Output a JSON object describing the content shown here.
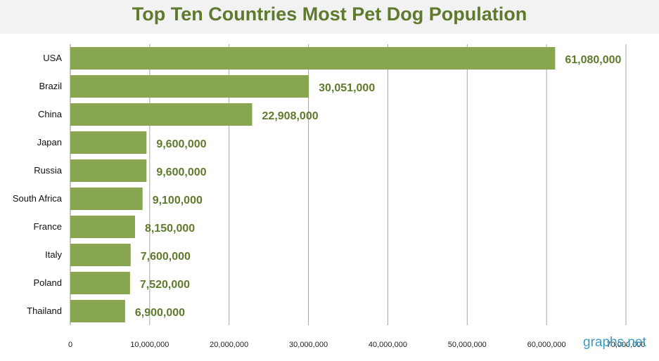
{
  "chart_data": {
    "type": "bar",
    "orientation": "horizontal",
    "title": "Top Ten Countries Most Pet Dog Population",
    "categories": [
      "USA",
      "Brazil",
      "China",
      "Japan",
      "Russia",
      "South Africa",
      "France",
      "Italy",
      "Poland",
      "Thailand"
    ],
    "values": [
      61080000,
      30051000,
      22908000,
      9600000,
      9600000,
      9100000,
      8150000,
      7600000,
      7520000,
      6900000
    ],
    "data_labels": [
      "61,080,000",
      "30,051,000",
      "22,908,000",
      "9,600,000",
      "9,600,000",
      "9,100,000",
      "8,150,000",
      "7,600,000",
      "7,520,000",
      "6,900,000"
    ],
    "xlim": [
      0,
      70000000
    ],
    "x_ticks": [
      0,
      10000000,
      20000000,
      30000000,
      40000000,
      50000000,
      60000000,
      70000000
    ],
    "x_tick_labels": [
      "0",
      "10,000,000",
      "20,000,000",
      "30,000,000",
      "40,000,000",
      "50,000,000",
      "60,000,000",
      "70,000,000"
    ],
    "grid": "vertical",
    "legend": "none",
    "colors": {
      "bar": "#88a650",
      "label": "#5f7a2c",
      "title": "#5f7a2c",
      "grid": "#a6a6a6"
    }
  },
  "watermark": "graphs.net"
}
